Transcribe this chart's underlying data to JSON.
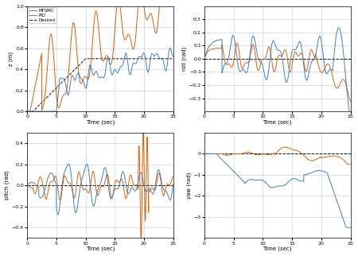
{
  "subplots": [
    {
      "ylabel": "z (m)",
      "xlabel": "Time (sec)",
      "xlim": [
        0,
        25
      ],
      "ylim": [
        0,
        1
      ],
      "yticks": [
        0.0,
        0.2,
        0.4,
        0.6,
        0.8,
        1.0
      ],
      "legend": true
    },
    {
      "ylabel": "roll (rad)",
      "xlabel": "Time (sec)",
      "xlim": [
        0,
        25
      ],
      "ylim": [
        -0.4,
        0.4
      ],
      "yticks": [
        -0.3,
        -0.2,
        -0.1,
        0.0,
        0.1,
        0.2,
        0.3
      ],
      "legend": false
    },
    {
      "ylabel": "pitch (rad)",
      "xlabel": "Time (sec)",
      "xlim": [
        0,
        25
      ],
      "ylim": [
        -0.5,
        0.5
      ],
      "yticks": [
        -0.4,
        -0.2,
        0.0,
        0.2,
        0.4
      ],
      "legend": false
    },
    {
      "ylabel": "yaw (rad)",
      "xlabel": "Time (sec)",
      "xlim": [
        0,
        25
      ],
      "ylim": [
        -4,
        1
      ],
      "yticks": [
        -3,
        -2,
        -1,
        0
      ],
      "legend": false
    }
  ],
  "mfsmc_color": "#3f7fbf",
  "pid_color": "#d95f02",
  "desired_color": "#111111",
  "linewidth": 0.7,
  "grid_color": "#c8d8e8",
  "background_color": "#ffffff"
}
